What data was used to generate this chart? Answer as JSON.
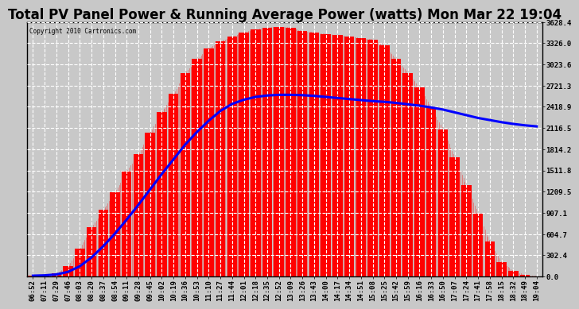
{
  "title": "Total PV Panel Power & Running Average Power (watts) Mon Mar 22 19:04",
  "copyright": "Copyright 2010 Cartronics.com",
  "ymax": 3628.4,
  "yticks": [
    0.0,
    302.4,
    604.7,
    907.1,
    1209.5,
    1511.8,
    1814.2,
    2116.5,
    2418.9,
    2721.3,
    3023.6,
    3326.0,
    3628.4
  ],
  "xtick_labels": [
    "06:52",
    "07:11",
    "07:29",
    "07:46",
    "08:03",
    "08:20",
    "08:37",
    "08:54",
    "09:11",
    "09:28",
    "09:45",
    "10:02",
    "10:19",
    "10:36",
    "10:53",
    "11:10",
    "11:27",
    "11:44",
    "12:01",
    "12:18",
    "12:35",
    "12:52",
    "13:09",
    "13:26",
    "13:43",
    "14:00",
    "14:17",
    "14:34",
    "14:51",
    "15:08",
    "15:25",
    "15:42",
    "15:59",
    "16:16",
    "16:33",
    "16:50",
    "17:07",
    "17:24",
    "17:41",
    "17:58",
    "18:15",
    "18:32",
    "18:49",
    "19:04"
  ],
  "background_color": "#c8c8c8",
  "plot_bg_color": "#c8c8c8",
  "fill_color": "#ff0000",
  "line_color": "#0000ff",
  "grid_color": "#ffffff",
  "title_fontsize": 12,
  "tick_fontsize": 6.5,
  "pv_power": [
    10,
    20,
    50,
    150,
    400,
    700,
    950,
    1200,
    1500,
    1750,
    2050,
    2350,
    2600,
    2900,
    3100,
    3250,
    3350,
    3420,
    3480,
    3520,
    3550,
    3560,
    3550,
    3500,
    3480,
    3460,
    3440,
    3420,
    3400,
    3380,
    3300,
    3100,
    2900,
    2700,
    2400,
    2100,
    1700,
    1300,
    900,
    500,
    200,
    80,
    20,
    5
  ],
  "running_avg": [
    10,
    15,
    28,
    65,
    145,
    270,
    430,
    610,
    810,
    1020,
    1240,
    1460,
    1670,
    1880,
    2060,
    2220,
    2360,
    2460,
    2520,
    2560,
    2580,
    2590,
    2590,
    2585,
    2575,
    2560,
    2545,
    2530,
    2515,
    2500,
    2490,
    2475,
    2455,
    2435,
    2410,
    2380,
    2340,
    2300,
    2260,
    2230,
    2200,
    2175,
    2155,
    2140
  ]
}
